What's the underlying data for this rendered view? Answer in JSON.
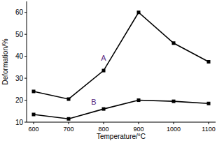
{
  "chart_data": {
    "type": "line",
    "x_label": "Temperature/°C",
    "y_label": "Deformation/%",
    "x": [
      600,
      700,
      800,
      900,
      1000,
      1100
    ],
    "series": [
      {
        "name": "A",
        "color": "#000000",
        "marker": "square",
        "values": [
          24,
          20.5,
          33.5,
          60,
          46,
          37.5
        ]
      },
      {
        "name": "B",
        "color": "#000000",
        "marker": "square",
        "values": [
          13.5,
          11.5,
          16,
          20,
          19.5,
          18.5
        ]
      }
    ],
    "xlim": [
      580,
      1120
    ],
    "xticks": [
      600,
      700,
      800,
      900,
      1000,
      1100
    ],
    "ylim": [
      10,
      65
    ],
    "yticks": [
      10,
      20,
      30,
      40,
      50,
      60
    ],
    "grid": false
  }
}
